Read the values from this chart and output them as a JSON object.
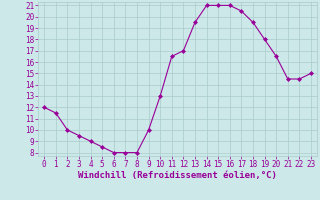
{
  "hours": [
    0,
    1,
    2,
    3,
    4,
    5,
    6,
    7,
    8,
    9,
    10,
    11,
    12,
    13,
    14,
    15,
    16,
    17,
    18,
    19,
    20,
    21,
    22,
    23
  ],
  "values": [
    12,
    11.5,
    10,
    9.5,
    9,
    8.5,
    8,
    8,
    8,
    10,
    13,
    16.5,
    17,
    19.5,
    21,
    21,
    21,
    20.5,
    19.5,
    18,
    16.5,
    14.5,
    14.5,
    15
  ],
  "ylim_min": 8,
  "ylim_max": 21,
  "yticks": [
    8,
    9,
    10,
    11,
    12,
    13,
    14,
    15,
    16,
    17,
    18,
    19,
    20,
    21
  ],
  "xticks": [
    0,
    1,
    2,
    3,
    4,
    5,
    6,
    7,
    8,
    9,
    10,
    11,
    12,
    13,
    14,
    15,
    16,
    17,
    18,
    19,
    20,
    21,
    22,
    23
  ],
  "xlabel": "Windchill (Refroidissement éolien,°C)",
  "line_color": "#990099",
  "marker": "D",
  "marker_size": 2.0,
  "bg_color": "#cce8e8",
  "grid_color": "#aacccc",
  "tick_color": "#990099",
  "label_color": "#990099",
  "tick_fontsize": 5.5,
  "xlabel_fontsize": 6.5
}
